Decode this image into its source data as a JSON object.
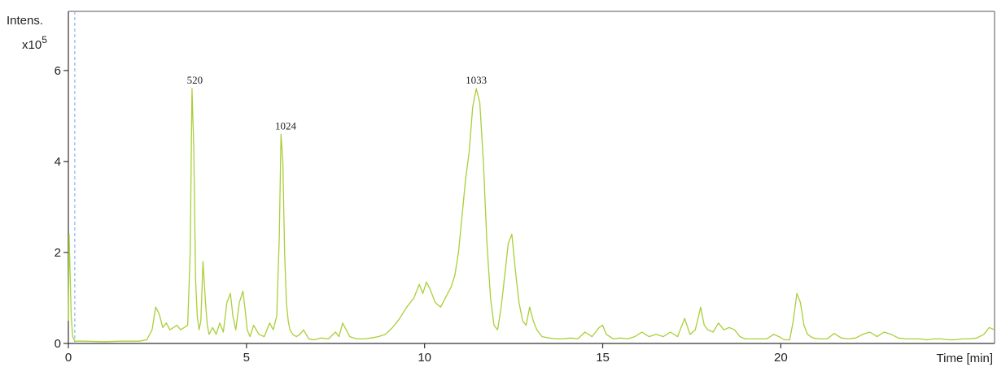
{
  "chart_data": {
    "type": "line",
    "title": "",
    "xlabel": "Time [min]",
    "ylabel": "Intens.",
    "ylabel_scale_prefix": "x10",
    "ylabel_scale_exponent": "5",
    "xlim": [
      0,
      26
    ],
    "ylim": [
      0,
      7.3
    ],
    "x_ticks": [
      0,
      5,
      10,
      15,
      20
    ],
    "y_ticks": [
      0,
      2,
      4,
      6
    ],
    "grid": false,
    "legend": "none",
    "line_color": "#a9cf38",
    "marker_line_color": "#8ab8e6",
    "marker_line_x": 0.18,
    "series": [
      {
        "x": [
          0.0,
          0.02,
          0.05,
          0.08,
          0.12,
          0.18,
          0.25,
          0.4,
          1.0,
          1.5,
          2.0,
          2.2,
          2.35,
          2.45,
          2.55,
          2.65,
          2.75,
          2.85,
          2.95,
          3.05,
          3.15,
          3.25,
          3.35,
          3.42,
          3.47,
          3.52,
          3.57,
          3.62,
          3.67,
          3.72,
          3.78,
          3.85,
          3.9,
          3.95,
          4.05,
          4.15,
          4.25,
          4.35,
          4.45,
          4.55,
          4.62,
          4.7,
          4.8,
          4.9,
          4.97,
          5.02,
          5.1,
          5.2,
          5.35,
          5.5,
          5.65,
          5.75,
          5.85,
          5.92,
          5.97,
          6.02,
          6.07,
          6.12,
          6.17,
          6.22,
          6.3,
          6.4,
          6.5,
          6.6,
          6.75,
          6.9,
          7.1,
          7.3,
          7.5,
          7.6,
          7.7,
          7.8,
          7.9,
          8.1,
          8.3,
          8.5,
          8.7,
          8.9,
          9.1,
          9.3,
          9.5,
          9.7,
          9.85,
          9.95,
          10.05,
          10.15,
          10.3,
          10.45,
          10.55,
          10.65,
          10.75,
          10.85,
          10.95,
          11.05,
          11.15,
          11.25,
          11.35,
          11.45,
          11.55,
          11.65,
          11.75,
          11.85,
          11.95,
          12.05,
          12.15,
          12.25,
          12.35,
          12.45,
          12.55,
          12.65,
          12.75,
          12.85,
          12.95,
          13.05,
          13.15,
          13.3,
          13.5,
          13.7,
          13.9,
          14.1,
          14.3,
          14.5,
          14.7,
          14.9,
          15.0,
          15.1,
          15.3,
          15.5,
          15.7,
          15.9,
          16.1,
          16.3,
          16.5,
          16.7,
          16.9,
          17.1,
          17.3,
          17.45,
          17.6,
          17.75,
          17.85,
          17.95,
          18.1,
          18.25,
          18.4,
          18.55,
          18.7,
          18.85,
          19.0,
          19.2,
          19.4,
          19.6,
          19.8,
          19.95,
          20.1,
          20.25,
          20.35,
          20.45,
          20.55,
          20.65,
          20.75,
          20.9,
          21.1,
          21.3,
          21.5,
          21.7,
          21.9,
          22.1,
          22.3,
          22.5,
          22.7,
          22.9,
          23.1,
          23.3,
          23.5,
          23.7,
          23.9,
          24.1,
          24.3,
          24.5,
          24.7,
          24.9,
          25.1,
          25.3,
          25.5,
          25.7,
          25.85,
          26.0
        ],
        "y": [
          0.5,
          2.4,
          1.5,
          0.6,
          0.15,
          0.05,
          0.05,
          0.05,
          0.04,
          0.05,
          0.05,
          0.08,
          0.3,
          0.8,
          0.65,
          0.35,
          0.45,
          0.3,
          0.35,
          0.4,
          0.3,
          0.35,
          0.4,
          2.0,
          5.6,
          4.3,
          1.4,
          0.6,
          0.3,
          0.5,
          1.8,
          0.9,
          0.4,
          0.2,
          0.35,
          0.2,
          0.45,
          0.25,
          0.9,
          1.1,
          0.6,
          0.3,
          0.9,
          1.15,
          0.7,
          0.3,
          0.15,
          0.4,
          0.2,
          0.15,
          0.45,
          0.3,
          0.6,
          2.3,
          4.6,
          4.0,
          2.0,
          0.9,
          0.5,
          0.3,
          0.2,
          0.15,
          0.2,
          0.3,
          0.1,
          0.08,
          0.12,
          0.1,
          0.25,
          0.15,
          0.45,
          0.3,
          0.15,
          0.1,
          0.1,
          0.12,
          0.15,
          0.2,
          0.35,
          0.55,
          0.8,
          1.0,
          1.3,
          1.1,
          1.35,
          1.2,
          0.9,
          0.8,
          0.95,
          1.1,
          1.25,
          1.5,
          2.0,
          2.8,
          3.6,
          4.2,
          5.2,
          5.6,
          5.3,
          4.0,
          2.2,
          1.0,
          0.4,
          0.3,
          0.8,
          1.5,
          2.2,
          2.4,
          1.6,
          0.9,
          0.5,
          0.4,
          0.8,
          0.5,
          0.3,
          0.15,
          0.12,
          0.1,
          0.1,
          0.12,
          0.1,
          0.25,
          0.15,
          0.35,
          0.4,
          0.2,
          0.1,
          0.12,
          0.1,
          0.15,
          0.25,
          0.15,
          0.2,
          0.15,
          0.25,
          0.15,
          0.55,
          0.2,
          0.3,
          0.8,
          0.4,
          0.3,
          0.25,
          0.45,
          0.3,
          0.35,
          0.3,
          0.15,
          0.1,
          0.1,
          0.1,
          0.1,
          0.2,
          0.15,
          0.08,
          0.08,
          0.5,
          1.1,
          0.9,
          0.4,
          0.2,
          0.12,
          0.1,
          0.1,
          0.22,
          0.12,
          0.1,
          0.12,
          0.2,
          0.25,
          0.15,
          0.25,
          0.2,
          0.12,
          0.1,
          0.1,
          0.1,
          0.08,
          0.1,
          0.1,
          0.08,
          0.08,
          0.1,
          0.1,
          0.12,
          0.2,
          0.35,
          0.3
        ]
      }
    ],
    "annotations": [
      {
        "text": "520",
        "x": 3.55,
        "y": 5.6
      },
      {
        "text": "1024",
        "x": 6.1,
        "y": 4.6
      },
      {
        "text": "1033",
        "x": 11.45,
        "y": 5.6
      }
    ]
  }
}
